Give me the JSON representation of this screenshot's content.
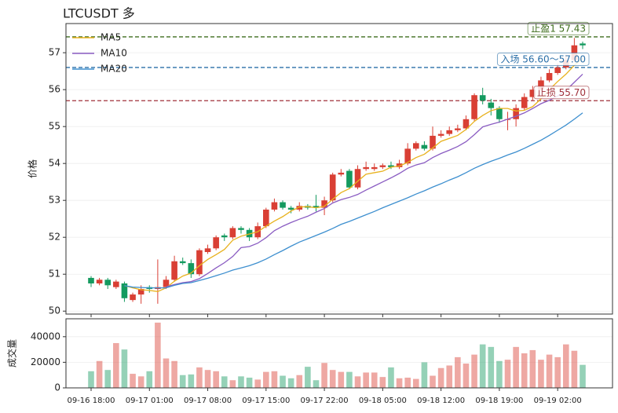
{
  "chart_data": [
    {
      "type": "candlestick",
      "title": "LTCUSDT  多",
      "y_label": "价格",
      "categories": [
        "09-16 18:00",
        null,
        null,
        null,
        null,
        null,
        null,
        "09-17 01:00",
        null,
        null,
        null,
        null,
        null,
        null,
        "09-17 08:00",
        null,
        null,
        null,
        null,
        null,
        null,
        "09-17 15:00",
        null,
        null,
        null,
        null,
        null,
        null,
        "09-17 22:00",
        null,
        null,
        null,
        null,
        null,
        null,
        "09-18 05:00",
        null,
        null,
        null,
        null,
        null,
        null,
        "09-18 12:00",
        null,
        null,
        null,
        null,
        null,
        null,
        "09-18 19:00",
        null,
        null,
        null,
        null,
        null,
        null,
        "09-19 02:00",
        null,
        null,
        null
      ],
      "open": [
        50.9,
        50.75,
        50.85,
        50.65,
        50.75,
        50.3,
        50.45,
        50.65,
        50.6,
        50.65,
        50.85,
        51.35,
        51.3,
        51.0,
        51.6,
        51.7,
        52.05,
        52.0,
        52.25,
        52.2,
        52.0,
        52.3,
        52.75,
        52.95,
        52.8,
        52.75,
        52.85,
        52.85,
        52.8,
        53.0,
        53.7,
        53.8,
        53.35,
        53.85,
        53.85,
        53.9,
        53.95,
        53.9,
        54.0,
        54.4,
        54.5,
        54.4,
        54.75,
        54.8,
        54.9,
        54.95,
        55.2,
        55.85,
        55.65,
        55.5,
        55.2,
        55.2,
        55.5,
        55.8,
        56.0,
        56.25,
        56.45,
        56.6,
        56.8,
        57.25
      ],
      "high": [
        50.95,
        50.9,
        50.9,
        50.85,
        50.8,
        50.5,
        50.7,
        50.7,
        51.4,
        50.95,
        51.5,
        51.45,
        51.4,
        51.7,
        51.8,
        52.05,
        52.1,
        52.3,
        52.3,
        52.25,
        52.4,
        52.8,
        53.05,
        53.0,
        52.85,
        52.95,
        52.9,
        53.15,
        53.1,
        53.75,
        53.85,
        53.85,
        53.95,
        54.05,
        54.0,
        54.0,
        54.05,
        54.1,
        54.55,
        54.6,
        54.6,
        55.0,
        54.9,
        55.0,
        55.05,
        55.3,
        55.9,
        56.05,
        55.75,
        55.55,
        55.4,
        55.6,
        55.9,
        56.1,
        56.35,
        56.55,
        56.7,
        56.95,
        57.4,
        57.3
      ],
      "low": [
        50.65,
        50.7,
        50.6,
        50.6,
        50.25,
        50.25,
        50.2,
        50.5,
        50.2,
        50.6,
        50.8,
        51.25,
        50.9,
        50.95,
        51.55,
        51.65,
        51.9,
        51.95,
        52.1,
        51.9,
        51.95,
        52.25,
        52.7,
        52.75,
        52.65,
        52.7,
        52.75,
        52.7,
        52.6,
        52.95,
        53.65,
        53.3,
        53.3,
        53.8,
        53.8,
        53.85,
        53.85,
        53.85,
        53.95,
        54.35,
        54.35,
        54.35,
        54.7,
        54.75,
        54.85,
        54.9,
        55.15,
        55.6,
        55.3,
        55.1,
        54.9,
        55.0,
        55.45,
        55.7,
        55.95,
        56.2,
        56.4,
        56.55,
        56.75,
        57.1
      ],
      "close": [
        50.75,
        50.85,
        50.7,
        50.8,
        50.35,
        50.45,
        50.6,
        50.6,
        50.65,
        50.85,
        51.35,
        51.3,
        51.0,
        51.65,
        51.7,
        52.0,
        52.0,
        52.25,
        52.2,
        52.0,
        52.3,
        52.75,
        52.95,
        52.8,
        52.75,
        52.85,
        52.8,
        52.8,
        53.0,
        53.7,
        53.75,
        53.35,
        53.85,
        53.9,
        53.9,
        53.95,
        53.9,
        54.0,
        54.4,
        54.55,
        54.4,
        54.75,
        54.8,
        54.9,
        54.95,
        55.2,
        55.85,
        55.7,
        55.5,
        55.2,
        55.2,
        55.5,
        55.8,
        56.0,
        56.25,
        56.45,
        56.6,
        56.8,
        57.2,
        57.2
      ],
      "up_color": "#d93f34",
      "down_color": "#149a5f",
      "series": [
        {
          "name": "MA5",
          "color": "#e8b21d",
          "values": [
            null,
            null,
            null,
            null,
            50.69,
            50.63,
            50.58,
            50.56,
            50.53,
            50.63,
            50.81,
            50.95,
            51.03,
            51.23,
            51.4,
            51.53,
            51.67,
            51.92,
            52.03,
            52.09,
            52.15,
            52.3,
            52.44,
            52.56,
            52.71,
            52.82,
            52.83,
            52.8,
            52.84,
            53.03,
            53.21,
            53.32,
            53.52,
            53.71,
            53.75,
            53.79,
            53.9,
            53.93,
            54.03,
            54.16,
            54.25,
            54.42,
            54.6,
            54.68,
            54.76,
            54.92,
            55.14,
            55.3,
            55.43,
            55.49,
            55.49,
            55.42,
            55.44,
            55.54,
            55.75,
            56.0,
            56.22,
            56.42,
            56.66,
            56.85
          ]
        },
        {
          "name": "MA10",
          "color": "#8a5cc2",
          "values": [
            null,
            null,
            null,
            null,
            null,
            null,
            null,
            null,
            null,
            50.66,
            50.72,
            50.77,
            50.8,
            50.88,
            51.02,
            51.17,
            51.31,
            51.48,
            51.72,
            51.75,
            51.84,
            51.99,
            52.18,
            52.3,
            52.4,
            52.49,
            52.57,
            52.68,
            52.78,
            52.93,
            53.02,
            53.08,
            53.16,
            53.28,
            53.39,
            53.5,
            53.61,
            53.73,
            53.87,
            53.96,
            54.02,
            54.16,
            54.27,
            54.36,
            54.46,
            54.59,
            54.78,
            54.99,
            55.06,
            55.12,
            55.2,
            55.28,
            55.37,
            55.49,
            55.62,
            55.71,
            55.83,
            55.98,
            56.2,
            56.42
          ]
        },
        {
          "name": "MA20",
          "color": "#3d8fcf",
          "values": [
            null,
            null,
            null,
            null,
            50.69,
            50.65,
            50.64,
            50.63,
            50.63,
            50.63,
            50.7,
            50.75,
            50.77,
            50.83,
            50.89,
            50.96,
            51.03,
            51.11,
            51.17,
            51.23,
            51.31,
            51.41,
            51.53,
            51.64,
            51.76,
            51.87,
            51.96,
            52.05,
            52.14,
            52.24,
            52.35,
            52.43,
            52.52,
            52.61,
            52.7,
            52.8,
            52.89,
            52.98,
            53.07,
            53.17,
            53.26,
            53.36,
            53.45,
            53.55,
            53.64,
            53.75,
            53.87,
            53.97,
            54.06,
            54.14,
            54.23,
            54.31,
            54.41,
            54.52,
            54.63,
            54.76,
            54.9,
            55.04,
            55.2,
            55.37
          ]
        }
      ],
      "levels": [
        {
          "label": "止盈1 57.43",
          "value": 57.43,
          "color": "#3f6e1e"
        },
        {
          "label": "入场 56.60～57.00",
          "value": 56.6,
          "color": "#2a6fa8"
        },
        {
          "label": "止损 55.70",
          "value": 55.7,
          "color": "#a0303a"
        }
      ],
      "ylim": [
        49.92,
        57.79
      ],
      "yticks": [
        50,
        51,
        52,
        53,
        54,
        55,
        56,
        57
      ],
      "grid": true,
      "legend": "upper left"
    },
    {
      "type": "bar",
      "y_label": "成交量",
      "values": [
        13000,
        21000,
        14000,
        35000,
        30000,
        11000,
        9000,
        13000,
        51000,
        23000,
        21000,
        10000,
        10500,
        16000,
        14000,
        13000,
        9000,
        6000,
        9000,
        8000,
        6500,
        12500,
        13000,
        9500,
        7500,
        10000,
        16500,
        6000,
        19500,
        14000,
        12500,
        12500,
        9000,
        12000,
        12000,
        8500,
        16000,
        7500,
        8000,
        7000,
        20000,
        9500,
        15500,
        17500,
        24000,
        19000,
        26000,
        34000,
        32000,
        21000,
        22000,
        32000,
        27000,
        29500,
        22000,
        26000,
        24000,
        34000,
        29000,
        18000
      ],
      "ylim": [
        0,
        54000
      ],
      "yticks": [
        0,
        20000,
        40000
      ],
      "grid": true
    }
  ]
}
